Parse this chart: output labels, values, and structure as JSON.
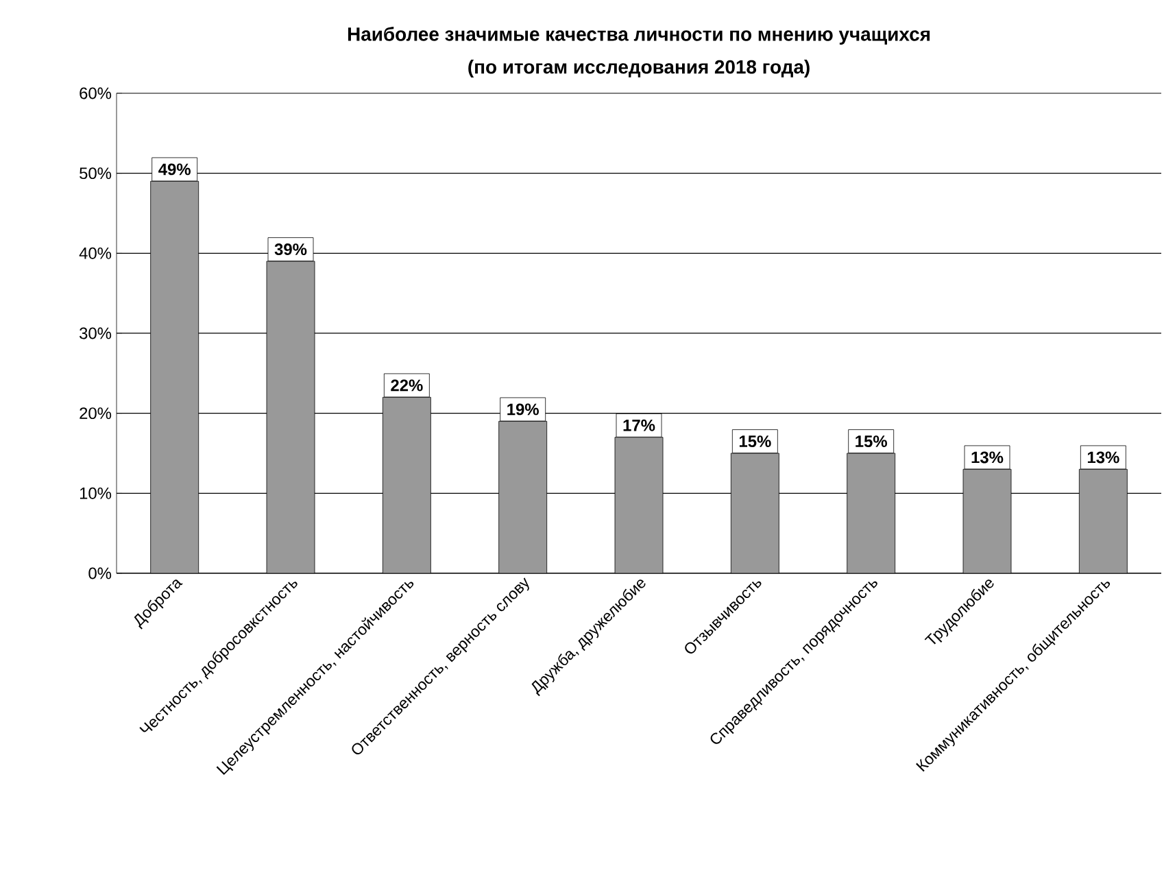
{
  "chart_data": {
    "type": "bar",
    "title": "Наиболее значимые качества личности по мнению учащихся",
    "subtitle": "(по итогам исследования 2018 года)",
    "categories": [
      "Доброта",
      "Честность, добросовкстность",
      "Целеустремленность, настойчивость",
      "Ответственность, верность слову",
      "Дружба, дружелюбие",
      "Отзывчивость",
      "Справедливость, порядочность",
      "Трудолюбие",
      "Коммуникативность, общительность"
    ],
    "values": [
      49,
      39,
      22,
      19,
      17,
      15,
      15,
      13,
      13
    ],
    "value_labels": [
      "49%",
      "39%",
      "22%",
      "19%",
      "17%",
      "15%",
      "15%",
      "13%",
      "13%"
    ],
    "color": "#999999",
    "ylim": [
      0,
      60
    ],
    "yticks": [
      {
        "value": 0,
        "label": "0%"
      },
      {
        "value": 10,
        "label": "10%"
      },
      {
        "value": 20,
        "label": "20%"
      },
      {
        "value": 30,
        "label": "30%"
      },
      {
        "value": 40,
        "label": "40%"
      },
      {
        "value": 50,
        "label": "50%"
      },
      {
        "value": 60,
        "label": "60%"
      }
    ],
    "grid": "y"
  }
}
